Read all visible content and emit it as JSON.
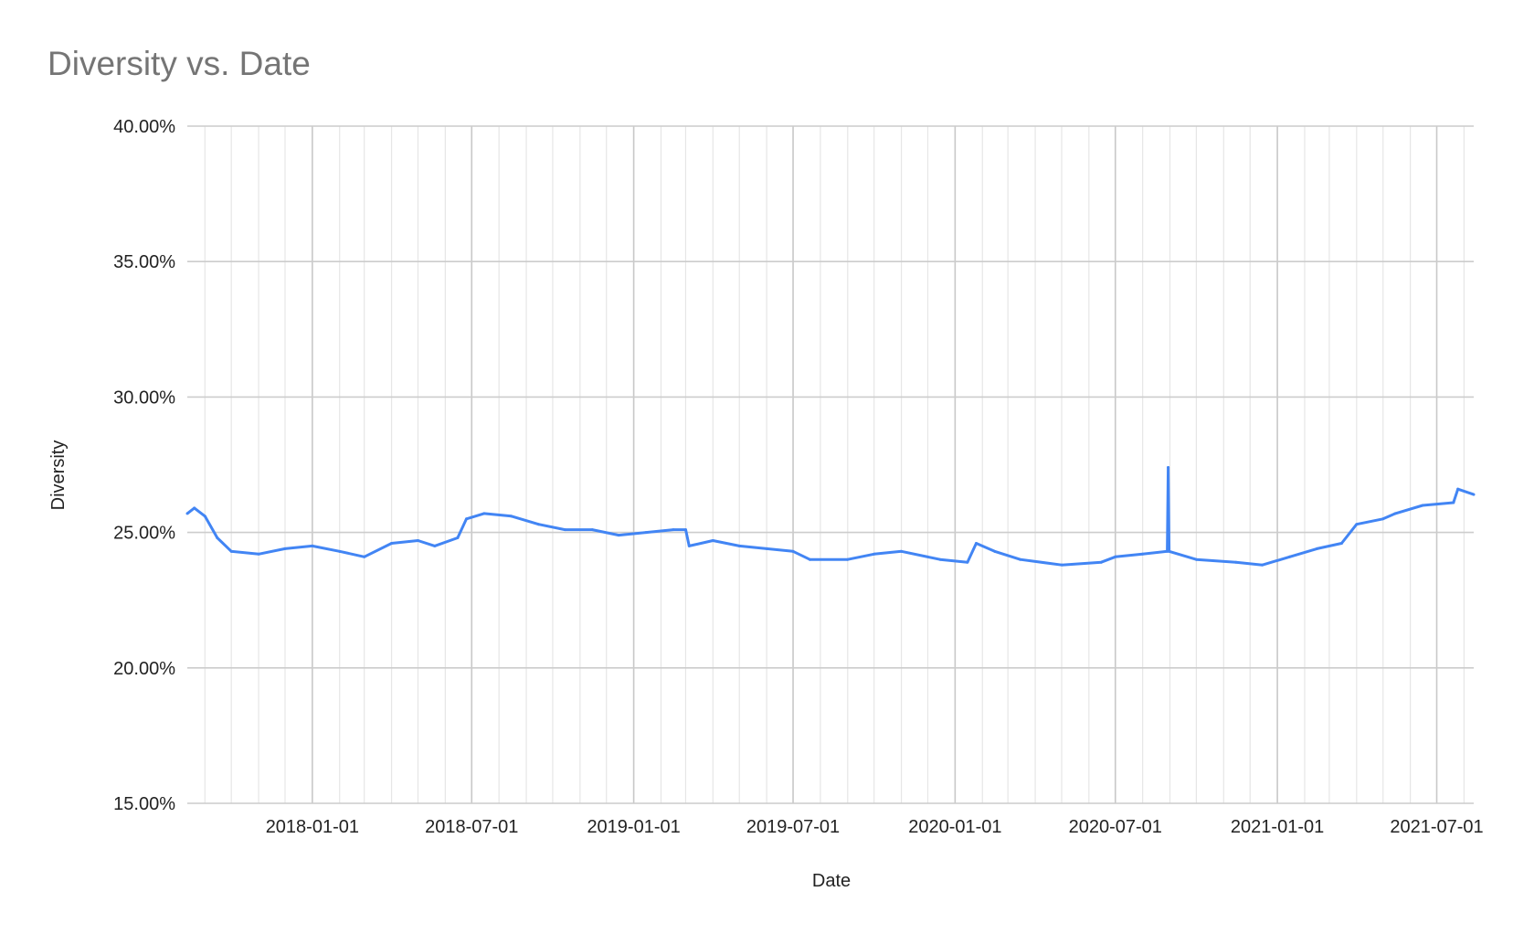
{
  "chart_data": {
    "type": "line",
    "title": "Diversity vs. Date",
    "xlabel": "Date",
    "ylabel": "Diversity",
    "xlim": [
      "2017-08-12",
      "2021-08-12"
    ],
    "ylim": [
      0.15,
      0.4
    ],
    "y_ticks": [
      "15.00%",
      "20.00%",
      "25.00%",
      "30.00%",
      "35.00%",
      "40.00%"
    ],
    "x_ticks": [
      "2018-01-01",
      "2018-07-01",
      "2019-01-01",
      "2019-07-01",
      "2020-01-01",
      "2020-07-01",
      "2021-01-01",
      "2021-07-01"
    ],
    "grid": true,
    "legend": "none",
    "color": "#4285f4",
    "series": [
      {
        "x": [
          "2017-08-12",
          "2017-08-20",
          "2017-09-01",
          "2017-09-15",
          "2017-10-01",
          "2017-11-01",
          "2017-12-01",
          "2018-01-01",
          "2018-02-01",
          "2018-03-01",
          "2018-04-01",
          "2018-05-01",
          "2018-05-20",
          "2018-06-15",
          "2018-06-25",
          "2018-07-15",
          "2018-08-15",
          "2018-09-15",
          "2018-10-15",
          "2018-11-15",
          "2018-12-15",
          "2019-01-15",
          "2019-02-15",
          "2019-03-01",
          "2019-03-05",
          "2019-04-01",
          "2019-05-01",
          "2019-06-01",
          "2019-07-01",
          "2019-07-20",
          "2019-09-01",
          "2019-10-01",
          "2019-11-01",
          "2019-12-15",
          "2020-01-15",
          "2020-01-25",
          "2020-02-15",
          "2020-03-15",
          "2020-05-01",
          "2020-06-15",
          "2020-07-01",
          "2020-08-01",
          "2020-08-29",
          "2020-08-30",
          "2020-08-31",
          "2020-10-01",
          "2020-11-15",
          "2020-12-15",
          "2021-01-15",
          "2021-02-15",
          "2021-03-15",
          "2021-04-01",
          "2021-05-01",
          "2021-05-15",
          "2021-06-15",
          "2021-07-20",
          "2021-07-25",
          "2021-08-12"
        ],
        "y": [
          0.257,
          0.259,
          0.256,
          0.248,
          0.243,
          0.242,
          0.244,
          0.245,
          0.243,
          0.241,
          0.246,
          0.247,
          0.245,
          0.248,
          0.255,
          0.257,
          0.256,
          0.253,
          0.251,
          0.251,
          0.249,
          0.25,
          0.251,
          0.251,
          0.245,
          0.247,
          0.245,
          0.244,
          0.243,
          0.24,
          0.24,
          0.242,
          0.243,
          0.24,
          0.239,
          0.246,
          0.243,
          0.24,
          0.238,
          0.239,
          0.241,
          0.242,
          0.243,
          0.274,
          0.243,
          0.24,
          0.239,
          0.238,
          0.241,
          0.244,
          0.246,
          0.253,
          0.255,
          0.257,
          0.26,
          0.261,
          0.266,
          0.264
        ]
      }
    ]
  }
}
